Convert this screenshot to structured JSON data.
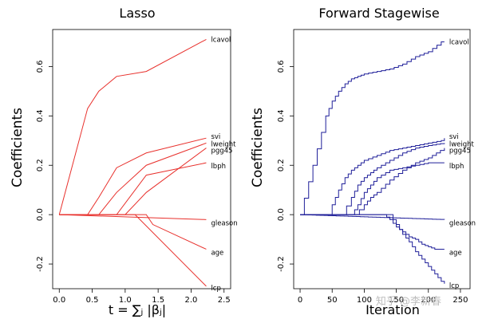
{
  "chart_data": [
    {
      "type": "line",
      "title": "Lasso",
      "xlabel": "t = ∑ⱼ |βⱼ|",
      "ylabel": "Coefficients",
      "xlim": [
        -0.1,
        2.6
      ],
      "ylim": [
        -0.3,
        0.75
      ],
      "xticks": [
        0.0,
        0.5,
        1.0,
        1.5,
        2.0,
        2.5
      ],
      "xtick_labels": [
        "0.0",
        "0.5",
        "1.0",
        "1.5",
        "2.0",
        "2.5"
      ],
      "yticks": [
        -0.2,
        0.0,
        0.2,
        0.4,
        0.6
      ],
      "ytick_labels": [
        "-0.2",
        "0.0",
        "0.2",
        "0.4",
        "0.6"
      ],
      "color": "#e8302c",
      "step": false,
      "series": [
        {
          "name": "lcavol",
          "x": [
            0,
            0.43,
            0.6,
            0.87,
            1.32,
            2.23
          ],
          "y": [
            0,
            0.43,
            0.5,
            0.56,
            0.58,
            0.71
          ]
        },
        {
          "name": "svi",
          "x": [
            0,
            0.43,
            0.6,
            0.87,
            1.32,
            2.23
          ],
          "y": [
            0,
            0,
            0.07,
            0.19,
            0.25,
            0.31
          ]
        },
        {
          "name": "lweight",
          "x": [
            0,
            0.6,
            0.87,
            1.32,
            2.23
          ],
          "y": [
            0,
            0,
            0.09,
            0.2,
            0.29
          ]
        },
        {
          "name": "pgg45",
          "x": [
            0,
            1.0,
            1.32,
            2.23
          ],
          "y": [
            0,
            0,
            0.09,
            0.27
          ]
        },
        {
          "name": "lbph",
          "x": [
            0,
            0.87,
            1.32,
            2.23
          ],
          "y": [
            0,
            0,
            0.16,
            0.21
          ]
        },
        {
          "name": "gleason",
          "x": [
            0,
            2.23
          ],
          "y": [
            0,
            -0.02
          ]
        },
        {
          "name": "age",
          "x": [
            0,
            1.32,
            1.42,
            2.23
          ],
          "y": [
            0,
            0,
            -0.04,
            -0.14
          ]
        },
        {
          "name": "lcp",
          "x": [
            0,
            1.15,
            2.23
          ],
          "y": [
            0,
            0,
            -0.29
          ]
        }
      ]
    },
    {
      "type": "line",
      "title": "Forward Stagewise",
      "xlabel": "Iteration",
      "ylabel": "Coefficients",
      "xlim": [
        -10,
        265
      ],
      "ylim": [
        -0.3,
        0.75
      ],
      "xticks": [
        0,
        50,
        100,
        150,
        200,
        250
      ],
      "xtick_labels": [
        "0",
        "50",
        "100",
        "150",
        "200",
        "250"
      ],
      "yticks": [
        -0.2,
        0.0,
        0.2,
        0.4,
        0.6
      ],
      "ytick_labels": [
        "-0.2",
        "0.0",
        "0.2",
        "0.4",
        "0.6"
      ],
      "color": "#1f1f99",
      "step": true,
      "series": [
        {
          "name": "lcavol",
          "x": [
            0,
            40,
            50,
            60,
            70,
            80,
            90,
            100,
            120,
            140,
            160,
            180,
            200,
            220,
            225
          ],
          "y": [
            0,
            0.4,
            0.46,
            0.5,
            0.53,
            0.55,
            0.56,
            0.57,
            0.58,
            0.59,
            0.61,
            0.64,
            0.66,
            0.7,
            0.7
          ]
        },
        {
          "name": "svi",
          "x": [
            0,
            42,
            50,
            60,
            70,
            80,
            90,
            100,
            120,
            140,
            160,
            180,
            200,
            220,
            225
          ],
          "y": [
            0,
            0,
            0.04,
            0.1,
            0.15,
            0.18,
            0.2,
            0.22,
            0.24,
            0.26,
            0.27,
            0.28,
            0.29,
            0.3,
            0.31
          ]
        },
        {
          "name": "lweight",
          "x": [
            0,
            65,
            80,
            90,
            100,
            110,
            120,
            140,
            160,
            180,
            200,
            225
          ],
          "y": [
            0,
            0,
            0.07,
            0.12,
            0.15,
            0.17,
            0.19,
            0.22,
            0.25,
            0.27,
            0.28,
            0.29
          ]
        },
        {
          "name": "pgg45",
          "x": [
            0,
            85,
            100,
            110,
            120,
            140,
            160,
            180,
            200,
            225
          ],
          "y": [
            0,
            0,
            0.04,
            0.07,
            0.09,
            0.14,
            0.18,
            0.21,
            0.23,
            0.27
          ]
        },
        {
          "name": "lbph",
          "x": [
            0,
            80,
            90,
            100,
            110,
            120,
            140,
            160,
            180,
            200,
            225
          ],
          "y": [
            0,
            0,
            0.04,
            0.09,
            0.12,
            0.15,
            0.18,
            0.19,
            0.2,
            0.21,
            0.21
          ]
        },
        {
          "name": "gleason",
          "x": [
            0,
            225
          ],
          "y": [
            0,
            -0.02
          ]
        },
        {
          "name": "age",
          "x": [
            0,
            130,
            140,
            150,
            160,
            170,
            180,
            190,
            200,
            210,
            225
          ],
          "y": [
            0,
            0,
            -0.02,
            -0.05,
            -0.07,
            -0.09,
            -0.1,
            -0.12,
            -0.13,
            -0.14,
            -0.14
          ]
        },
        {
          "name": "lcp",
          "x": [
            0,
            140,
            150,
            160,
            170,
            180,
            190,
            200,
            210,
            220,
            225
          ],
          "y": [
            0,
            0,
            -0.04,
            -0.08,
            -0.11,
            -0.15,
            -0.18,
            -0.21,
            -0.24,
            -0.27,
            -0.28
          ]
        }
      ]
    }
  ],
  "watermark": "知乎 @李新春"
}
